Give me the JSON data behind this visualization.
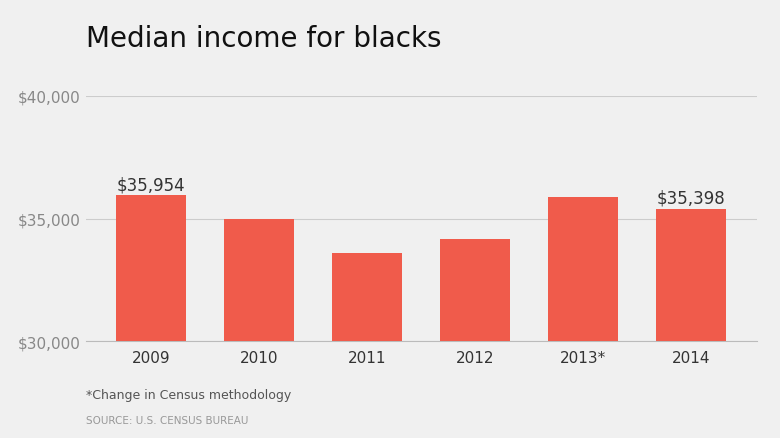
{
  "title": "Median income for blacks",
  "categories": [
    "2009",
    "2010",
    "2011",
    "2012",
    "2013*",
    "2014"
  ],
  "values": [
    35954,
    34994,
    33578,
    34164,
    35890,
    35398
  ],
  "bar_color": "#f05b4b",
  "annotated_bars": [
    0,
    5
  ],
  "annotations": [
    "$35,954",
    "$35,398"
  ],
  "ylim": [
    30000,
    40000
  ],
  "yticks": [
    30000,
    35000,
    40000
  ],
  "ytick_labels": [
    "$30,000",
    "$35,000",
    "$40,000"
  ],
  "footnote1": "*Change in Census methodology",
  "footnote2": "SOURCE: U.S. CENSUS BUREAU",
  "background_color": "#f0f0f0",
  "title_fontsize": 20,
  "annotation_fontsize": 12,
  "tick_fontsize": 11,
  "footnote1_fontsize": 9,
  "footnote2_fontsize": 7.5
}
